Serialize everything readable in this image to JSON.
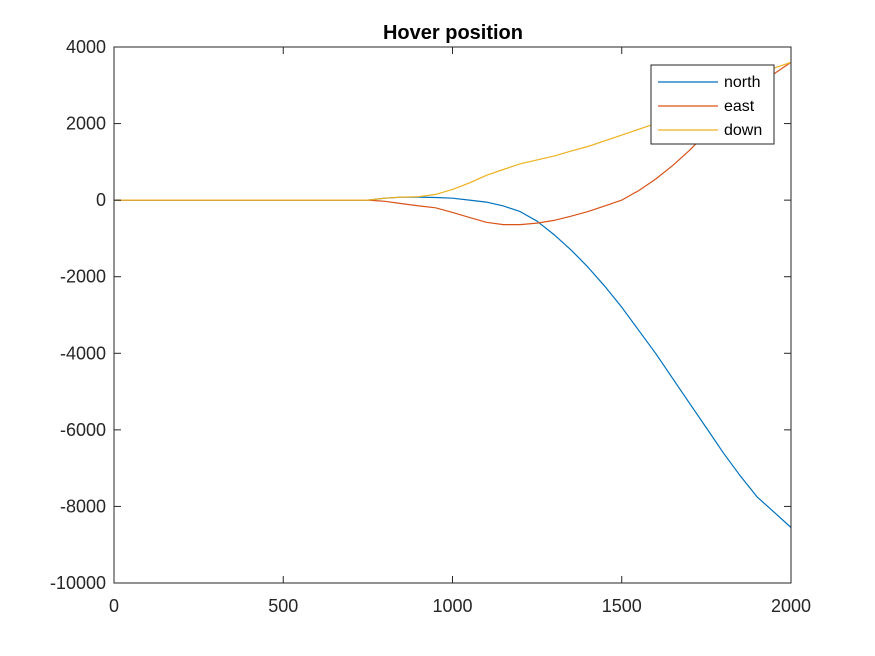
{
  "chart_data": {
    "type": "line",
    "title": "Hover position",
    "xlabel": "",
    "ylabel": "",
    "xlim": [
      0,
      2000
    ],
    "ylim": [
      -10000,
      4000
    ],
    "xticks": [
      0,
      500,
      1000,
      1500,
      2000
    ],
    "yticks": [
      -10000,
      -8000,
      -6000,
      -4000,
      -2000,
      0,
      2000,
      4000
    ],
    "grid": false,
    "legend_position": "top-right",
    "series": [
      {
        "name": "north",
        "color": "#0072BD",
        "x": [
          0,
          200,
          400,
          600,
          750,
          800,
          850,
          900,
          950,
          1000,
          1050,
          1100,
          1150,
          1200,
          1250,
          1300,
          1350,
          1400,
          1450,
          1500,
          1550,
          1600,
          1650,
          1700,
          1750,
          1800,
          1850,
          1900,
          1950,
          2000
        ],
        "y": [
          0,
          0,
          0,
          0,
          0,
          50,
          80,
          80,
          70,
          50,
          0,
          -50,
          -150,
          -300,
          -550,
          -900,
          -1300,
          -1750,
          -2250,
          -2800,
          -3400,
          -4000,
          -4650,
          -5300,
          -5950,
          -6600,
          -7200,
          -7750,
          -8150,
          -8550
        ]
      },
      {
        "name": "east",
        "color": "#D95319",
        "x": [
          0,
          200,
          400,
          600,
          750,
          800,
          850,
          900,
          950,
          1000,
          1050,
          1100,
          1150,
          1200,
          1250,
          1300,
          1350,
          1400,
          1450,
          1500,
          1550,
          1600,
          1650,
          1700,
          1750,
          1800,
          1850,
          1900,
          1950,
          2000
        ],
        "y": [
          0,
          0,
          0,
          0,
          0,
          -30,
          -90,
          -150,
          -200,
          -320,
          -450,
          -580,
          -640,
          -640,
          -600,
          -530,
          -420,
          -300,
          -150,
          0,
          250,
          550,
          900,
          1300,
          1750,
          2200,
          2700,
          3100,
          3300,
          3600
        ]
      },
      {
        "name": "down",
        "color": "#EDB120",
        "x": [
          0,
          200,
          400,
          600,
          750,
          800,
          850,
          900,
          950,
          1000,
          1050,
          1100,
          1150,
          1200,
          1250,
          1300,
          1350,
          1400,
          1450,
          1500,
          1550,
          1600,
          1650,
          1700,
          1750,
          1800,
          1850,
          1900,
          1950,
          2000
        ],
        "y": [
          0,
          0,
          0,
          0,
          0,
          50,
          80,
          90,
          150,
          280,
          450,
          650,
          800,
          950,
          1050,
          1150,
          1280,
          1400,
          1550,
          1700,
          1850,
          2000,
          2200,
          2400,
          2650,
          2900,
          3100,
          3300,
          3450,
          3600
        ]
      }
    ]
  }
}
